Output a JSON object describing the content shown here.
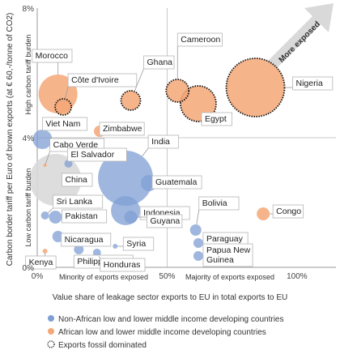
{
  "chart_data": {
    "type": "scatter",
    "title": "",
    "xlabel": "Value share of leakage sector exports to EU in total exports to EU",
    "ylabel": "Carbon border tariff per Euro of brown exports (at € 60,-/tonne of CO2)",
    "xlim": [
      0,
      115
    ],
    "ylim": [
      0,
      8
    ],
    "x_ticks": [
      {
        "value": 0,
        "label": "0%"
      },
      {
        "value": 50,
        "label": "50%"
      },
      {
        "value": 100,
        "label": "100%"
      }
    ],
    "y_ticks": [
      {
        "value": 0,
        "label": "0%"
      },
      {
        "value": 4,
        "label": "4%"
      },
      {
        "value": 8,
        "label": "8%"
      }
    ],
    "grid": false,
    "bands": {
      "x_left": "Minority of exports exposed",
      "x_right": "Majority of exports exposed",
      "y_low": "Low carbon tariff burden",
      "y_high": "High carbon tariff burden"
    },
    "annotation": "More exposed",
    "legend": {
      "position": "bottom",
      "entries": [
        {
          "label": "Non-African low and lower middle income developing countries",
          "color": "#7f9fd4"
        },
        {
          "label": "African low and lower middle income developing countries",
          "color": "#f4a777"
        },
        {
          "label": "Exports fossil dominated",
          "style": "dotted-outline"
        }
      ]
    },
    "colors": {
      "non_african": "#7f9fd4",
      "african": "#f4a777",
      "fossil_outline": "#111111"
    },
    "points": [
      {
        "name": "Morocco",
        "x": 8,
        "y": 5.35,
        "size": 12,
        "group": "african",
        "fossil": false
      },
      {
        "name": "Côte d'Ivoire",
        "x": 10,
        "y": 4.95,
        "size": 5,
        "group": "african",
        "fossil": true
      },
      {
        "name": "Ghana",
        "x": 36,
        "y": 5.15,
        "size": 6,
        "group": "african",
        "fossil": true
      },
      {
        "name": "Cameroon",
        "x": 54,
        "y": 5.45,
        "size": 7,
        "group": "african",
        "fossil": true
      },
      {
        "name": "Egypt",
        "x": 62,
        "y": 5.05,
        "size": 11,
        "group": "african",
        "fossil": true
      },
      {
        "name": "Nigeria",
        "x": 84,
        "y": 5.55,
        "size": 18,
        "group": "african",
        "fossil": true
      },
      {
        "name": "Viet Nam",
        "x": 2,
        "y": 3.95,
        "size": 6,
        "group": "non_african",
        "fossil": false
      },
      {
        "name": "Zimbabwe",
        "x": 24,
        "y": 4.2,
        "size": 3.5,
        "group": "african",
        "fossil": false
      },
      {
        "name": "Cabo Verde",
        "x": 3,
        "y": 3.15,
        "size": 1,
        "group": "african",
        "fossil": false
      },
      {
        "name": "El Salvador",
        "x": 12,
        "y": 3.2,
        "size": 2.5,
        "group": "non_african",
        "fossil": false
      },
      {
        "name": "China",
        "x": 7,
        "y": 2.7,
        "size": 16,
        "group": "china",
        "fossil": false
      },
      {
        "name": "India",
        "x": 34,
        "y": 2.75,
        "size": 17,
        "group": "non_african",
        "fossil": false
      },
      {
        "name": "Guatemala",
        "x": 43,
        "y": 2.6,
        "size": 5,
        "group": "non_african",
        "fossil": false
      },
      {
        "name": "Sri Lanka",
        "x": 3,
        "y": 1.6,
        "size": 2.5,
        "group": "non_african",
        "fossil": false
      },
      {
        "name": "Pakistan",
        "x": 7,
        "y": 1.55,
        "size": 4,
        "group": "non_african",
        "fossil": false
      },
      {
        "name": "Indonesia",
        "x": 34,
        "y": 1.75,
        "size": 9,
        "group": "non_african",
        "fossil": false
      },
      {
        "name": "Guyana",
        "x": 36,
        "y": 1.55,
        "size": 4,
        "group": "non_african",
        "fossil": false
      },
      {
        "name": "Bolivia",
        "x": 61,
        "y": 1.15,
        "size": 3.5,
        "group": "non_african",
        "fossil": false
      },
      {
        "name": "Paraguay",
        "x": 62,
        "y": 0.75,
        "size": 3,
        "group": "non_african",
        "fossil": false
      },
      {
        "name": "Congo",
        "x": 87,
        "y": 1.65,
        "size": 4,
        "group": "african",
        "fossil": false
      },
      {
        "name": "Nicaragua",
        "x": 8,
        "y": 0.95,
        "size": 3.5,
        "group": "non_african",
        "fossil": false
      },
      {
        "name": "Syria",
        "x": 30,
        "y": 0.65,
        "size": 1.5,
        "group": "non_african",
        "fossil": false
      },
      {
        "name": "Papua New Guinea",
        "x": 62,
        "y": 0.35,
        "size": 3,
        "group": "non_african",
        "fossil": false
      },
      {
        "name": "Kenya",
        "x": 3,
        "y": 0.5,
        "size": 1.5,
        "group": "african",
        "fossil": false
      },
      {
        "name": "Philippines",
        "x": 16,
        "y": 0.55,
        "size": 3,
        "group": "non_african",
        "fossil": false
      },
      {
        "name": "Honduras",
        "x": 23,
        "y": 0.45,
        "size": 2.5,
        "group": "non_african",
        "fossil": false
      }
    ]
  }
}
